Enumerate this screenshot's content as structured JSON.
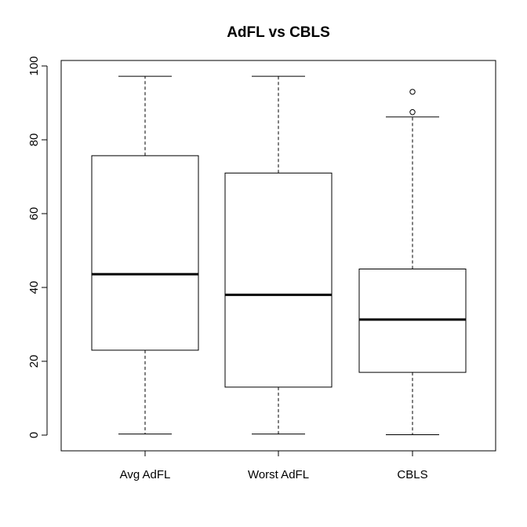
{
  "chart_data": {
    "type": "boxplot",
    "title": "AdFL vs CBLS",
    "xlabel": "",
    "ylabel": "",
    "ylim": [
      -4,
      101
    ],
    "yticks": [
      0,
      20,
      40,
      60,
      80,
      100
    ],
    "grid": false,
    "categories": [
      "Avg AdFL",
      "Worst AdFL",
      "CBLS"
    ],
    "boxes": [
      {
        "label": "Avg AdFL",
        "whisker_low": 0.3,
        "q1": 23.0,
        "median": 43.6,
        "q3": 75.7,
        "whisker_high": 97.2,
        "outliers": []
      },
      {
        "label": "Worst AdFL",
        "whisker_low": 0.3,
        "q1": 13.0,
        "median": 38.0,
        "q3": 71.0,
        "whisker_high": 97.2,
        "outliers": []
      },
      {
        "label": "CBLS",
        "whisker_low": 0.1,
        "q1": 17.0,
        "median": 31.3,
        "q3": 45.0,
        "whisker_high": 86.2,
        "outliers": [
          87.5,
          93.0
        ]
      }
    ]
  }
}
